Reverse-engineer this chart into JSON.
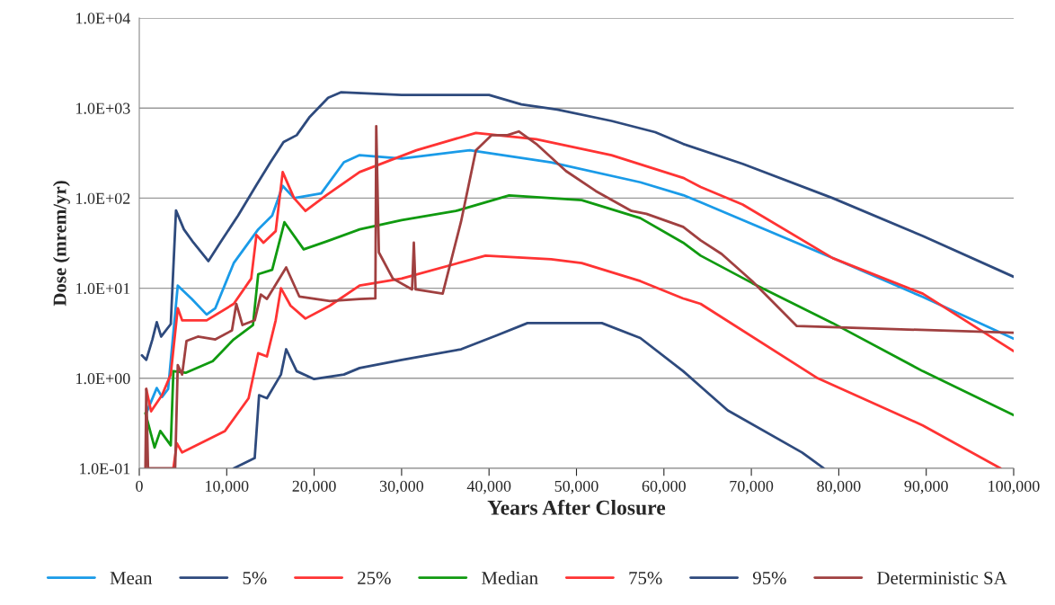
{
  "chart_data": {
    "type": "line",
    "xlabel": "Years After Closure",
    "ylabel": "Dose (mrem/yr)",
    "log": "y",
    "xlim": [
      0,
      100000
    ],
    "xticks": [
      0,
      {
        "value": 10000,
        "label": "10,000"
      },
      {
        "value": 20000,
        "label": "20,000"
      },
      {
        "value": 30000,
        "label": "30,000"
      },
      {
        "value": 40000,
        "label": "40,000"
      },
      {
        "value": 50000,
        "label": "50,000"
      },
      {
        "value": 60000,
        "label": "60,000"
      },
      {
        "value": 70000,
        "label": "70,000"
      },
      {
        "value": 80000,
        "label": "80,000"
      },
      {
        "value": 90000,
        "label": "90,000"
      },
      {
        "value": 100000,
        "label": "100,000"
      }
    ],
    "ylim": [
      0.1,
      10000
    ],
    "yticks": [
      {
        "value": 0.1,
        "label": "1.0E-01"
      },
      {
        "value": 1,
        "label": "1.0E+00"
      },
      {
        "value": 10,
        "label": "1.0E+01"
      },
      {
        "value": 100,
        "label": "1.0E+02"
      },
      {
        "value": 1000,
        "label": "1.0E+03"
      },
      {
        "value": 10000,
        "label": "1.0E+04"
      }
    ],
    "grid": "y",
    "legend": "bottom",
    "line_style": "solid",
    "marker": "none",
    "series": [
      {
        "name": "Mean",
        "color": "#1a9be8",
        "x": [
          800,
          2000,
          2600,
          3300,
          4400,
          6000,
          7700,
          8700,
          10800,
          13600,
          15200,
          16400,
          17700,
          20800,
          23400,
          25200,
          30000,
          37800,
          47100,
          57300,
          62200,
          64200,
          79300,
          89600,
          100000
        ],
        "values": [
          0.41,
          0.78,
          0.62,
          0.76,
          10.7,
          7.6,
          5.1,
          6,
          19,
          45,
          64,
          137,
          100,
          113,
          250,
          300,
          275,
          340,
          250,
          150,
          108,
          90,
          21.6,
          8,
          2.75
        ]
      },
      {
        "name": "5%",
        "color": "#2e4a7d",
        "x": [
          10800,
          13200,
          13700,
          14600,
          16200,
          16800,
          18000,
          20000,
          23400,
          25200,
          30000,
          36800,
          40900,
          44400,
          52900,
          57300,
          62200,
          64200,
          67300,
          75800,
          78300
        ],
        "values": [
          0.1,
          0.13,
          0.65,
          0.6,
          1.1,
          2.1,
          1.2,
          0.98,
          1.1,
          1.3,
          1.6,
          2.1,
          3.0,
          4.1,
          4.1,
          2.8,
          1.2,
          0.81,
          0.44,
          0.15,
          0.1
        ]
      },
      {
        "name": "25%",
        "color": "#ff3333",
        "x": [
          3900,
          4300,
          4900,
          9800,
          12500,
          13600,
          14600,
          15600,
          16200,
          17300,
          19000,
          21800,
          25200,
          30000,
          39600,
          47100,
          50600,
          57300,
          62200,
          64200,
          77600,
          89600,
          98500
        ],
        "values": [
          0.1,
          0.19,
          0.15,
          0.26,
          0.6,
          1.9,
          1.75,
          4.4,
          10,
          6.4,
          4.6,
          6.4,
          10.7,
          12.8,
          23,
          21,
          19,
          12,
          7.7,
          6.7,
          1.0,
          0.3,
          0.1
        ]
      },
      {
        "name": "Median",
        "color": "#109a10",
        "x": [
          700,
          1750,
          2400,
          3600,
          3900,
          5300,
          8400,
          10800,
          13000,
          13600,
          15200,
          16600,
          18800,
          21400,
          25200,
          30000,
          36200,
          42300,
          50600,
          57300,
          62200,
          64200,
          70100,
          79300,
          89600,
          100000
        ],
        "values": [
          0.41,
          0.17,
          0.26,
          0.18,
          1.2,
          1.15,
          1.55,
          2.7,
          3.9,
          14.3,
          16,
          54,
          27,
          33,
          45,
          57,
          72,
          107,
          95,
          60,
          32,
          23,
          11.4,
          4.1,
          1.2,
          0.39
        ]
      },
      {
        "name": "75%",
        "color": "#ff3333",
        "x": [
          800,
          1350,
          2600,
          3600,
          4400,
          4900,
          7700,
          10800,
          12800,
          13400,
          14200,
          15600,
          16400,
          17700,
          19000,
          21400,
          25200,
          31700,
          38500,
          45400,
          54000,
          62200,
          64200,
          69000,
          79300,
          89600,
          100000
        ],
        "values": [
          0.76,
          0.43,
          0.65,
          1.1,
          6,
          4.4,
          4.4,
          6.7,
          12.8,
          39,
          32,
          43,
          195,
          100,
          72,
          108,
          195,
          340,
          530,
          450,
          300,
          168,
          133,
          85,
          21.6,
          8.7,
          2.0
        ]
      },
      {
        "name": "95%",
        "color": "#2e4a7d",
        "x": [
          300,
          800,
          1500,
          2000,
          2500,
          3600,
          4200,
          5100,
          6200,
          7900,
          9250,
          11300,
          13400,
          15000,
          16500,
          18000,
          19500,
          21600,
          23100,
          30000,
          36500,
          40000,
          43700,
          47800,
          54000,
          59000,
          62200,
          69000,
          79300,
          89600,
          100000
        ],
        "values": [
          1.8,
          1.6,
          2.7,
          4.2,
          2.9,
          4.0,
          73,
          45,
          32,
          20,
          32,
          64,
          140,
          250,
          420,
          500,
          800,
          1300,
          1500,
          1400,
          1400,
          1400,
          1100,
          960,
          720,
          540,
          400,
          240,
          100,
          38,
          13.4
        ]
      },
      {
        "name": "Deterministic SA",
        "color": "#a04040",
        "x": [
          700,
          800,
          1000,
          4100,
          4400,
          4900,
          5400,
          6700,
          8700,
          10600,
          11100,
          11800,
          13200,
          13900,
          14600,
          16800,
          18300,
          21800,
          25200,
          27000,
          27100,
          27400,
          29000,
          31200,
          31400,
          31600,
          34700,
          36800,
          38500,
          40300,
          42100,
          43400,
          45400,
          48800,
          52200,
          56300,
          58000,
          62200,
          64200,
          66600,
          70100,
          75200,
          100000
        ],
        "values": [
          0.1,
          0.76,
          0.1,
          0.1,
          1.4,
          1.1,
          2.6,
          2.9,
          2.7,
          3.4,
          6.7,
          3.9,
          4.4,
          8.5,
          7.6,
          17,
          8.1,
          7.2,
          7.6,
          7.7,
          630,
          25,
          12.8,
          9.7,
          32,
          9.7,
          8.7,
          55,
          340,
          500,
          500,
          550,
          400,
          200,
          120,
          72,
          67,
          48,
          34,
          24,
          12,
          3.8,
          3.2
        ]
      }
    ]
  }
}
